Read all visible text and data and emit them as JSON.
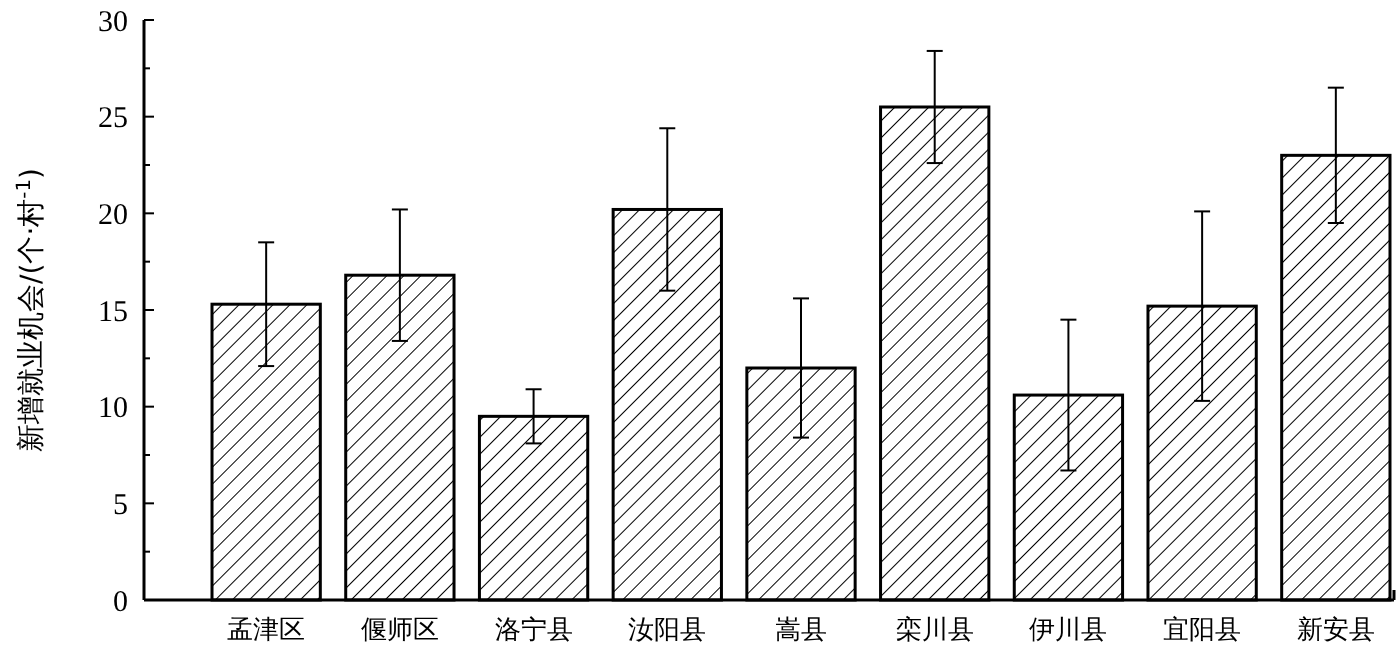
{
  "chart_data": {
    "type": "bar",
    "ylabel": "新增就业机会/(个·村$^{-1}$)",
    "categories": [
      "孟津区",
      "偃师区",
      "洛宁县",
      "汝阳县",
      "嵩县",
      "栾川县",
      "伊川县",
      "宜阳县",
      "新安县"
    ],
    "values": [
      15.3,
      16.8,
      9.5,
      20.2,
      12.0,
      25.5,
      10.6,
      15.2,
      23.0
    ],
    "errors": [
      3.2,
      3.4,
      1.4,
      4.2,
      3.6,
      2.9,
      3.9,
      4.9,
      3.5
    ],
    "color": "#000000",
    "ylim": [
      0,
      30
    ],
    "yticks": [
      0,
      {
        "value": 2.5,
        "label": null
      },
      5,
      {
        "value": 7.5,
        "label": null
      },
      10,
      {
        "value": 12.5,
        "label": null
      },
      15,
      {
        "value": 17.5,
        "label": null
      },
      20,
      {
        "value": 22.5,
        "label": null
      },
      25,
      {
        "value": 27.5,
        "label": null
      },
      30
    ],
    "grid": false
  }
}
